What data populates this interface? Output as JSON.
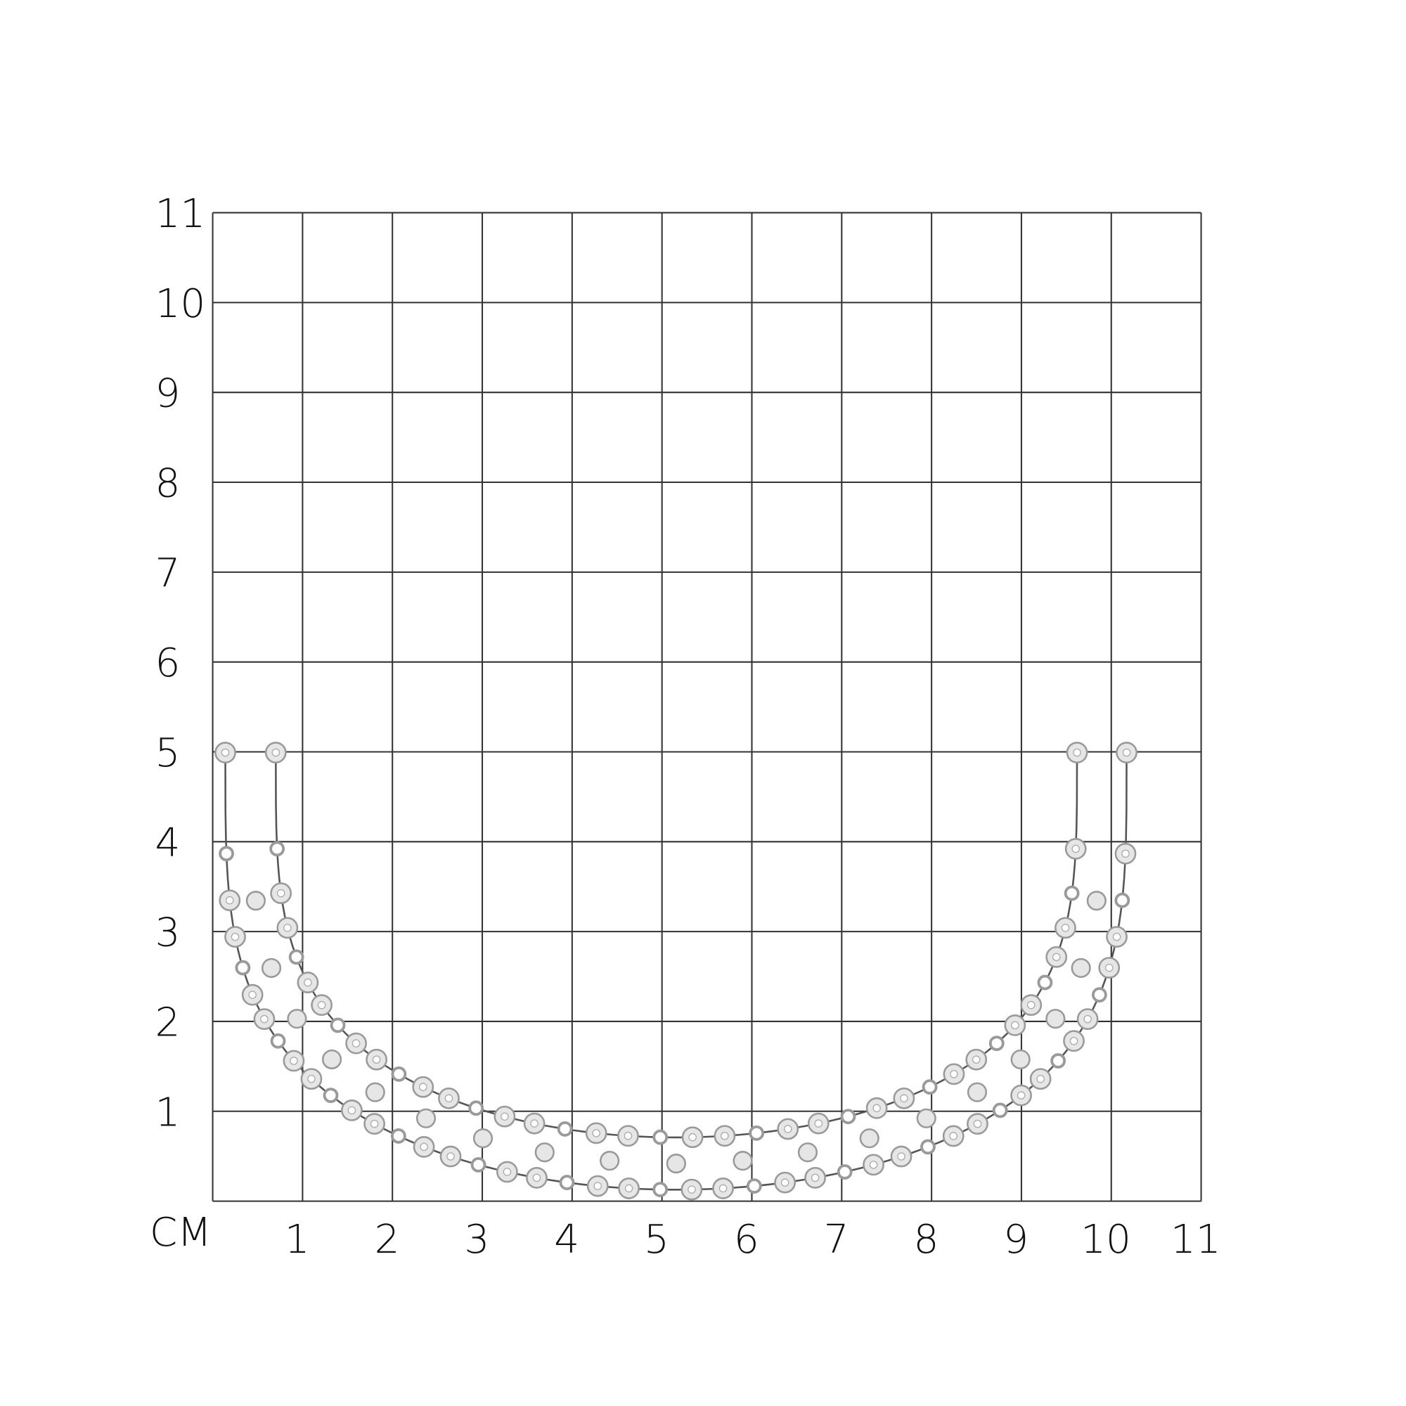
{
  "unit_label": "CM",
  "x_axis": {
    "ticks": [
      "1",
      "2",
      "3",
      "4",
      "5",
      "6",
      "7",
      "8",
      "9",
      "10",
      "11"
    ],
    "range": [
      0,
      11
    ]
  },
  "y_axis": {
    "ticks": [
      "1",
      "2",
      "3",
      "4",
      "5",
      "6",
      "7",
      "8",
      "9",
      "10",
      "11"
    ],
    "range": [
      0,
      11
    ]
  },
  "product": {
    "type": "bracelet",
    "approx_width_cm": 10,
    "approx_height_cm": 5.2,
    "metal_color": "#9a9a9a",
    "stone_color": "#e6e6e6"
  },
  "colors": {
    "grid": "#333333",
    "background": "#ffffff"
  }
}
